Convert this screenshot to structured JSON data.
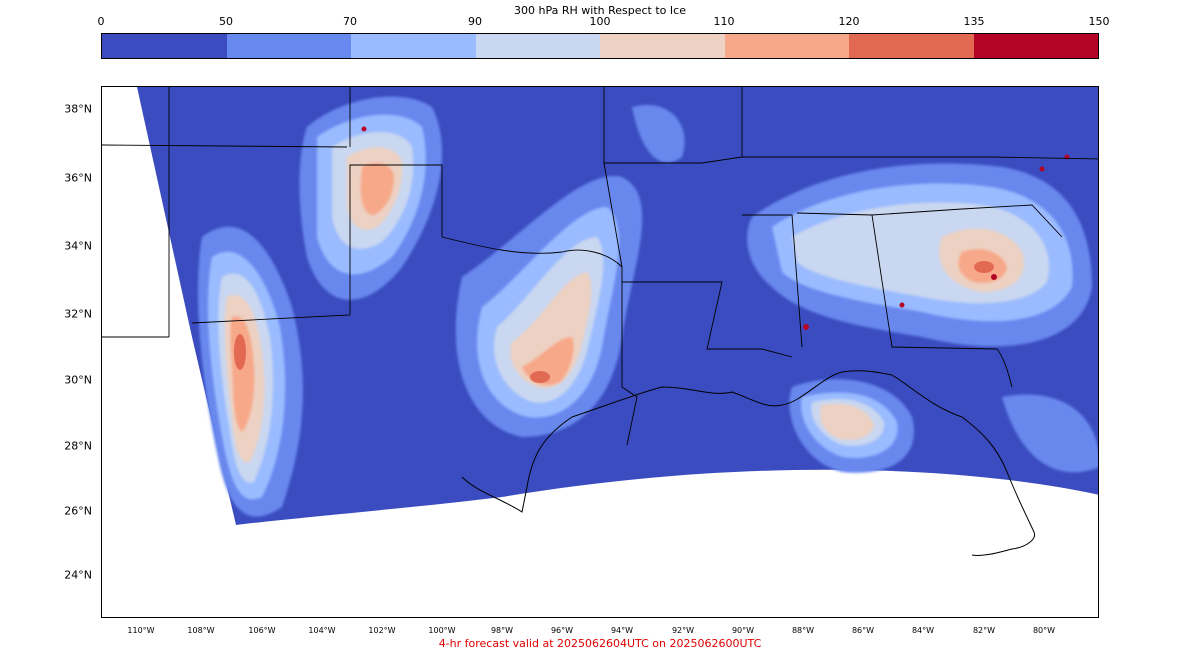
{
  "colorbar": {
    "title": "300 hPa RH with Respect to Ice",
    "ticks": [
      "0",
      "50",
      "70",
      "90",
      "100",
      "110",
      "120",
      "135",
      "150"
    ],
    "colors": [
      "#3b4cc0",
      "#6788ee",
      "#9abbff",
      "#c9d7f0",
      "#edd1c2",
      "#f7a889",
      "#e26952",
      "#b40426"
    ]
  },
  "map": {
    "lat_labels": [
      "38°N",
      "36°N",
      "34°N",
      "32°N",
      "30°N",
      "28°N",
      "26°N",
      "24°N"
    ],
    "lon_labels": [
      "110°W",
      "108°W",
      "106°W",
      "104°W",
      "102°W",
      "100°W",
      "98°W",
      "96°W",
      "94°W",
      "92°W",
      "90°W",
      "88°W",
      "86°W",
      "84°W",
      "82°W",
      "80°W"
    ]
  },
  "footer": {
    "valid_text": "4-hr forecast valid at 2025062604UTC on 2025062600UTC",
    "color": "#e00000"
  }
}
